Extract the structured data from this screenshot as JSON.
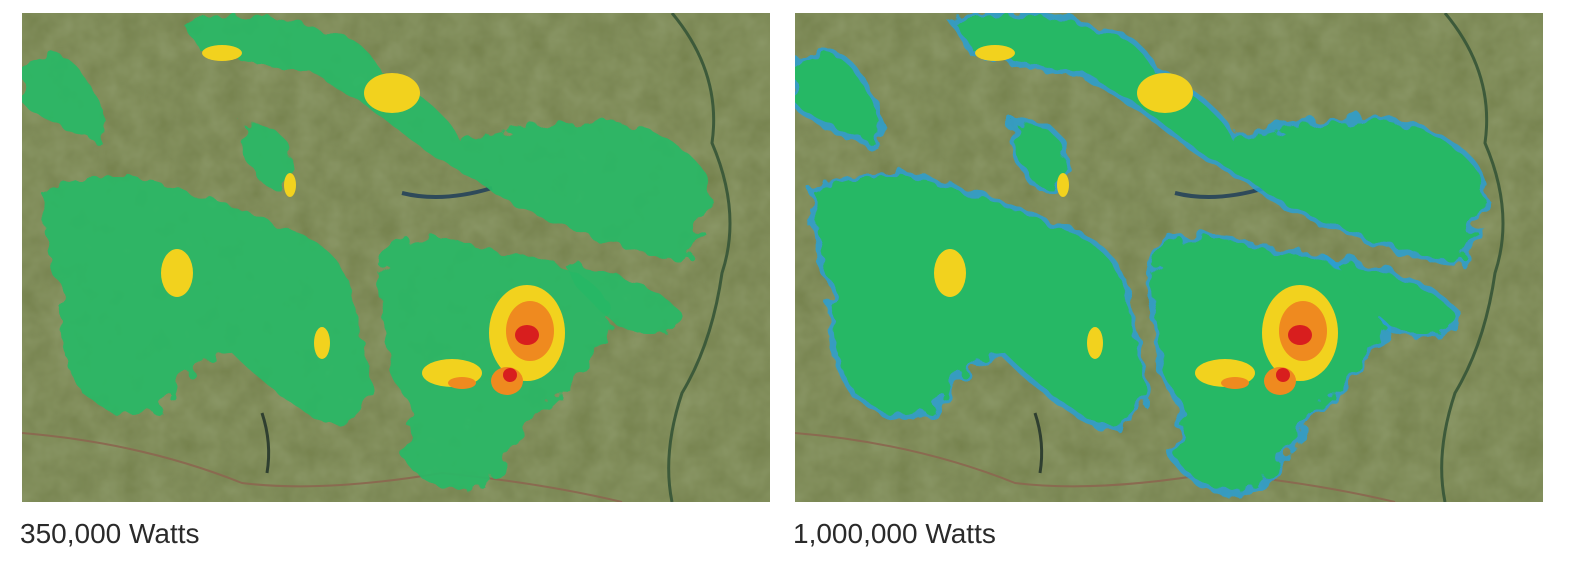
{
  "panels": [
    {
      "caption": "350,000 Watts"
    },
    {
      "caption": "1,000,000 Watts"
    }
  ]
}
